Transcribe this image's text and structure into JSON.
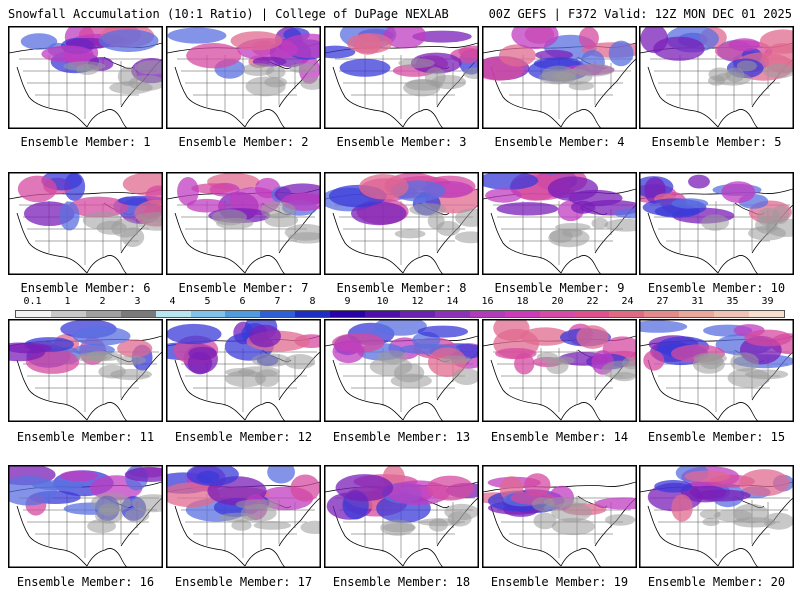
{
  "header": {
    "title": "Snowfall Accumulation (10:1 Ratio) | College of DuPage NEXLAB",
    "run_info": "00Z GEFS | F372 Valid: 12Z MON DEC 01 2025"
  },
  "colorbar": {
    "labels": [
      "0.1",
      "1",
      "2",
      "3",
      "4",
      "5",
      "6",
      "7",
      "8",
      "9",
      "10",
      "12",
      "14",
      "16",
      "18",
      "20",
      "22",
      "24",
      "27",
      "31",
      "35",
      "39"
    ],
    "colors": [
      "#f4f4f4",
      "#c8c8c8",
      "#a0a0a0",
      "#7a7a7a",
      "#b7e6f2",
      "#7fc3ea",
      "#4f9be0",
      "#2f5fd6",
      "#1c2fc2",
      "#2a00a8",
      "#4d10a8",
      "#6b22b0",
      "#8e30b8",
      "#b03cbc",
      "#cc3cb8",
      "#d84aa6",
      "#e0508f",
      "#e06a80",
      "#e48a8a",
      "#eaa89c",
      "#f0c4b4",
      "#f8e0cc"
    ]
  },
  "panels": [
    {
      "caption": "Ensemble Member: 1"
    },
    {
      "caption": "Ensemble Member: 2"
    },
    {
      "caption": "Ensemble Member: 3"
    },
    {
      "caption": "Ensemble Member: 4"
    },
    {
      "caption": "Ensemble Member: 5"
    },
    {
      "caption": "Ensemble Member: 6"
    },
    {
      "caption": "Ensemble Member: 7"
    },
    {
      "caption": "Ensemble Member: 8"
    },
    {
      "caption": "Ensemble Member: 9"
    },
    {
      "caption": "Ensemble Member: 10"
    },
    {
      "caption": "Ensemble Member: 11"
    },
    {
      "caption": "Ensemble Member: 12"
    },
    {
      "caption": "Ensemble Member: 13"
    },
    {
      "caption": "Ensemble Member: 14"
    },
    {
      "caption": "Ensemble Member: 15"
    },
    {
      "caption": "Ensemble Member: 16"
    },
    {
      "caption": "Ensemble Member: 17"
    },
    {
      "caption": "Ensemble Member: 18"
    },
    {
      "caption": "Ensemble Member: 19"
    },
    {
      "caption": "Ensemble Member: 20"
    }
  ]
}
